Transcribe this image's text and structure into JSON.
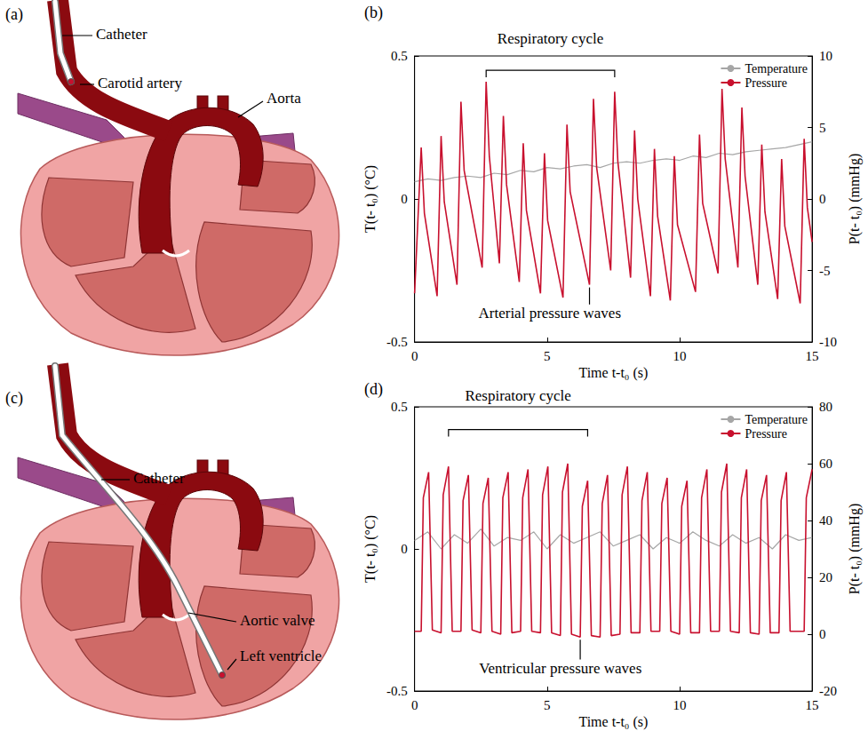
{
  "chart_data": [
    {
      "panel_letter": "(b)",
      "type": "line",
      "x_label": "Time t-t₀ (s)",
      "y_label": "T(t- t₀) (°C)",
      "y2_label": "P(t- t₀) (mmHg)",
      "xlim": [
        0,
        15
      ],
      "xticks": [
        0,
        5,
        10,
        15
      ],
      "ylim": [
        -0.5,
        0.5
      ],
      "yticks": [
        -0.5,
        0,
        0.5
      ],
      "y2lim": [
        -10,
        10
      ],
      "y2ticks": [
        -10,
        -5,
        0,
        5,
        10
      ],
      "grid": false,
      "legend": "upper right",
      "series": [
        {
          "name": "Temperature",
          "color": "#a6a6a6",
          "x": [
            0,
            0.5,
            1,
            1.5,
            2,
            2.5,
            3,
            3.5,
            4,
            4.5,
            5,
            5.5,
            6,
            6.5,
            7,
            7.5,
            8,
            8.5,
            9,
            9.5,
            10,
            10.5,
            11,
            11.5,
            12,
            12.5,
            13,
            13.5,
            14,
            14.5,
            15
          ],
          "values": [
            0.06,
            0.07,
            0.065,
            0.075,
            0.08,
            0.075,
            0.09,
            0.085,
            0.1,
            0.095,
            0.11,
            0.105,
            0.115,
            0.12,
            0.11,
            0.125,
            0.13,
            0.125,
            0.135,
            0.14,
            0.135,
            0.15,
            0.145,
            0.16,
            0.155,
            0.165,
            0.17,
            0.175,
            0.18,
            0.19,
            0.2
          ]
        },
        {
          "name": "Pressure",
          "color": "#c8102e",
          "axis": "y2",
          "x": [
            0.0,
            0.25,
            0.37,
            0.85,
            1.0,
            1.12,
            1.6,
            1.75,
            1.87,
            2.55,
            2.7,
            2.82,
            3.2,
            3.35,
            3.47,
            3.95,
            4.1,
            4.22,
            4.75,
            4.9,
            5.02,
            5.6,
            5.75,
            5.87,
            6.6,
            6.75,
            6.87,
            7.4,
            7.55,
            7.67,
            8.15,
            8.3,
            8.42,
            8.9,
            9.05,
            9.17,
            9.65,
            9.8,
            9.92,
            10.6,
            10.75,
            10.87,
            11.45,
            11.6,
            11.72,
            12.2,
            12.35,
            12.47,
            12.95,
            13.1,
            13.22,
            13.7,
            13.85,
            13.97,
            14.55,
            14.7,
            14.82,
            15.0
          ],
          "values": [
            -6.6,
            3.6,
            -1.0,
            -6.8,
            4.4,
            -0.2,
            -6.0,
            6.8,
            2.0,
            -4.8,
            8.2,
            3.0,
            -4.5,
            5.8,
            1.0,
            -5.8,
            3.9,
            -0.8,
            -6.6,
            3.2,
            -1.5,
            -6.9,
            5.2,
            0.5,
            -6.0,
            7.0,
            2.2,
            -5.0,
            7.5,
            2.6,
            -5.5,
            4.8,
            0.0,
            -6.8,
            3.5,
            -1.2,
            -7.1,
            3.0,
            -1.8,
            -6.5,
            4.5,
            -0.3,
            -5.2,
            7.7,
            2.8,
            -4.8,
            6.4,
            1.6,
            -6.0,
            3.8,
            -0.9,
            -7.0,
            2.8,
            -1.9,
            -7.3,
            4.2,
            -0.6,
            -3.0
          ]
        }
      ],
      "annotations": [
        {
          "text": "Respiratory cycle",
          "x": [
            2.7,
            7.55
          ],
          "y": 9.0,
          "text_y": 11.2,
          "axis": "y2"
        },
        {
          "text": "Arterial pressure waves",
          "x": 5.1,
          "y": -8.0,
          "target": [
            6.6,
            -6.0
          ],
          "axis": "y2"
        }
      ]
    },
    {
      "panel_letter": "(d)",
      "type": "line",
      "x_label": "Time t-t₀ (s)",
      "y_label": "T(t- t₀) (°C)",
      "y2_label": "P(t- t₀) (mmHg)",
      "xlim": [
        0,
        15
      ],
      "xticks": [
        0,
        5,
        10,
        15
      ],
      "ylim": [
        -0.5,
        0.5
      ],
      "yticks": [
        -0.5,
        0,
        0.5
      ],
      "y2lim": [
        -20,
        80
      ],
      "y2ticks": [
        -20,
        0,
        20,
        40,
        60,
        80
      ],
      "grid": false,
      "legend": "upper right",
      "series": [
        {
          "name": "Temperature",
          "color": "#a6a6a6",
          "x": [
            0,
            0.5,
            1,
            1.5,
            2,
            2.5,
            3,
            3.5,
            4,
            4.5,
            5,
            5.5,
            6,
            6.5,
            7,
            7.5,
            8,
            8.5,
            9,
            9.5,
            10,
            10.5,
            11,
            11.5,
            12,
            12.5,
            13,
            13.5,
            14,
            14.5,
            15
          ],
          "values": [
            0.03,
            0.06,
            0.0,
            0.05,
            0.02,
            0.07,
            0.01,
            0.04,
            0.03,
            0.06,
            0.0,
            0.05,
            0.02,
            0.04,
            0.06,
            0.01,
            0.03,
            0.05,
            0.0,
            0.04,
            0.02,
            0.06,
            0.03,
            0.01,
            0.05,
            0.02,
            0.04,
            0.0,
            0.05,
            0.03,
            0.04
          ]
        },
        {
          "name": "Pressure",
          "color": "#c8102e",
          "axis": "y2",
          "x": [
            0,
            0.25,
            0.33,
            0.53,
            0.67,
            1.0,
            1.08,
            1.28,
            1.42,
            1.75,
            1.83,
            2.03,
            2.17,
            2.5,
            2.58,
            2.78,
            2.92,
            3.25,
            3.33,
            3.53,
            3.67,
            4.0,
            4.08,
            4.28,
            4.42,
            4.75,
            4.83,
            5.03,
            5.17,
            5.5,
            5.58,
            5.78,
            5.92,
            6.25,
            6.33,
            6.53,
            6.67,
            7.0,
            7.08,
            7.28,
            7.42,
            7.75,
            7.83,
            8.03,
            8.17,
            8.5,
            8.58,
            8.78,
            8.92,
            9.25,
            9.33,
            9.53,
            9.67,
            10.0,
            10.08,
            10.28,
            10.42,
            10.75,
            10.83,
            11.03,
            11.17,
            11.5,
            11.58,
            11.78,
            11.92,
            12.25,
            12.33,
            12.53,
            12.67,
            13.0,
            13.08,
            13.28,
            13.42,
            13.75,
            13.83,
            14.03,
            14.17,
            14.7,
            14.78,
            15.0
          ],
          "values": [
            1,
            1,
            48,
            57,
            1.5,
            0.5,
            49,
            59,
            1,
            1,
            47,
            56,
            1.5,
            0.5,
            46,
            55,
            1,
            0,
            48,
            57,
            0.5,
            1,
            48,
            58,
            1,
            0.5,
            49,
            59,
            0.5,
            -0.5,
            50,
            60,
            0,
            -1,
            45,
            54,
            -0.5,
            -1,
            46,
            56,
            -0.5,
            0,
            49,
            59,
            0.5,
            0.5,
            47,
            57,
            1,
            1,
            46,
            55,
            1,
            0,
            45,
            54,
            0.5,
            0.5,
            48,
            58,
            1,
            1,
            50,
            60,
            1,
            0.5,
            48,
            58,
            0.5,
            0,
            47,
            56,
            0.5,
            0.5,
            47,
            57,
            1,
            1,
            48,
            58
          ]
        }
      ],
      "annotations": [
        {
          "text": "Respiratory cycle",
          "x": [
            1.28,
            6.53
          ],
          "y": 72,
          "text_y": 84,
          "axis": "y2"
        },
        {
          "text": "Ventricular pressure waves",
          "x": 5.5,
          "y": -12,
          "target": [
            6.25,
            -1
          ],
          "axis": "y2"
        }
      ]
    }
  ],
  "diagrams": [
    {
      "panel_letter": "(a)",
      "labels": [
        "Catheter",
        "Carotid artery",
        "Aorta"
      ]
    },
    {
      "panel_letter": "(c)",
      "labels": [
        "Catheter",
        "Aortic valve",
        "Left ventricle"
      ]
    }
  ]
}
